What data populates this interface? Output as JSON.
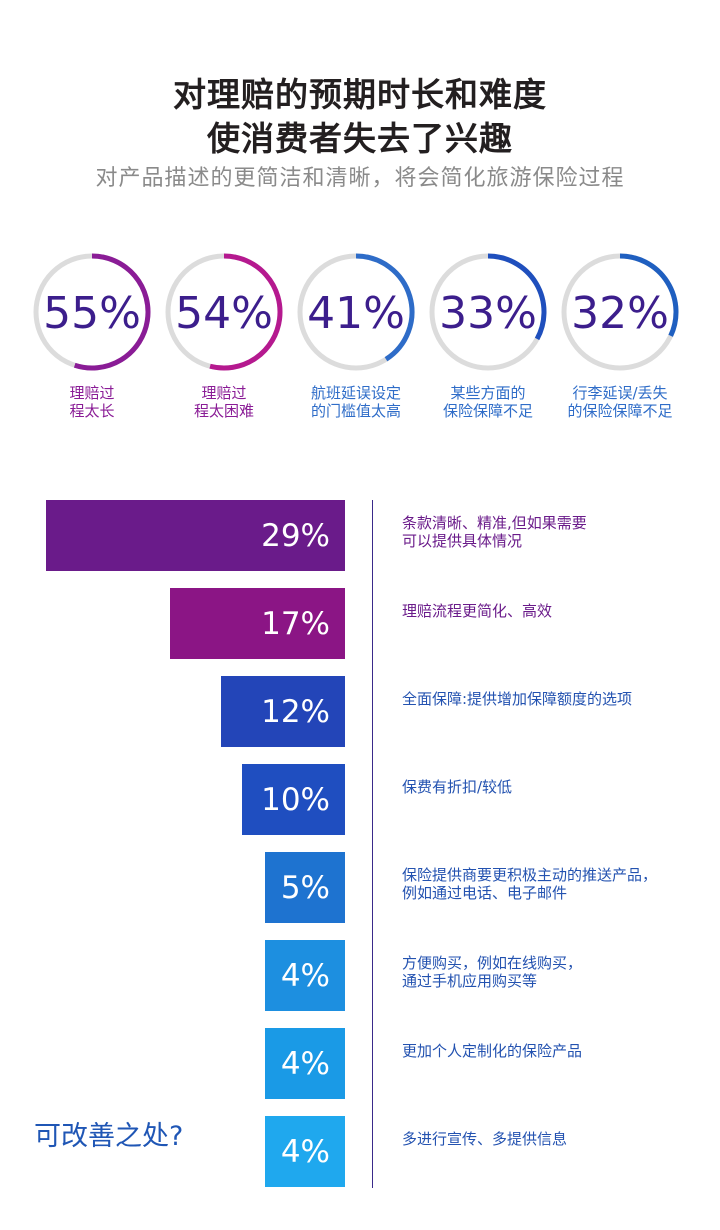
{
  "header": {
    "title_line1": "对理赔的预期时长和难度",
    "title_line2": "使消费者失去了兴趣",
    "subtitle": "对产品描述的更简洁和清晰，将会简化旅游保险过程"
  },
  "rings": [
    {
      "value": 55,
      "text": "55%",
      "label": [
        "理赔过",
        "程太长"
      ],
      "color": "#8a1c96",
      "label_color": "#8a1c96"
    },
    {
      "value": 54,
      "text": "54%",
      "label": [
        "理赔过",
        "程太困难"
      ],
      "color": "#b5198f",
      "label_color": "#8a1c96"
    },
    {
      "value": 41,
      "text": "41%",
      "label": [
        "航班延误设定",
        "的门槛值太高"
      ],
      "color": "#2e6cc8",
      "label_color": "#2e6cc8"
    },
    {
      "value": 33,
      "text": "33%",
      "label": [
        "某些方面的",
        "保险保障不足"
      ],
      "color": "#1f4fbd",
      "label_color": "#2e6cc8"
    },
    {
      "value": 32,
      "text": "32%",
      "label": [
        "行李延误/丢失",
        "的保险保障不足"
      ],
      "color": "#1f5fc0",
      "label_color": "#2e6cc8"
    }
  ],
  "chart_data": {
    "type": "bar",
    "categories": [
      "条款清晰、精准,但如果需要可以提供具体情况",
      "理赔流程更简化、高效",
      "全面保障:提供增加保障额度的选项",
      "保费有折扣/较低",
      "保险提供商要更积极主动的推送产品，例如通过电话、电子邮件",
      "方便购买，例如在线购买，通过手机应用购买等",
      "更加个人定制化的保险产品",
      "多进行宣传、多提供信息"
    ],
    "values": [
      29,
      17,
      12,
      10,
      5,
      4,
      4,
      4
    ],
    "value_labels": [
      "29%",
      "17%",
      "12%",
      "10%",
      "5%",
      "4%",
      "4%",
      "4%"
    ],
    "label_lines": [
      [
        "条款清晰、精准,但如果需要",
        "可以提供具体情况"
      ],
      [
        "理赔流程更简化、高效"
      ],
      [
        "全面保障:提供增加保障额度的选项"
      ],
      [
        "保费有折扣/较低"
      ],
      [
        "保险提供商要更积极主动的推送产品，",
        "例如通过电话、电子邮件"
      ],
      [
        "方便购买，例如在线购买，",
        "通过手机应用购买等"
      ],
      [
        "更加个人定制化的保险产品"
      ],
      [
        "多进行宣传、多提供信息"
      ]
    ],
    "colors": [
      "#6a1b8a",
      "#8b1585",
      "#2345b8",
      "#1f4ec0",
      "#1e73d0",
      "#1d8fe0",
      "#1a9ae6",
      "#1fa8ee"
    ],
    "label_colors": [
      "#6a1b8a",
      "#6a1b8a",
      "#2352b0",
      "#2352b0",
      "#2352b0",
      "#2352b0",
      "#2352b0",
      "#2352b0"
    ]
  },
  "callout": "可改善之处?"
}
